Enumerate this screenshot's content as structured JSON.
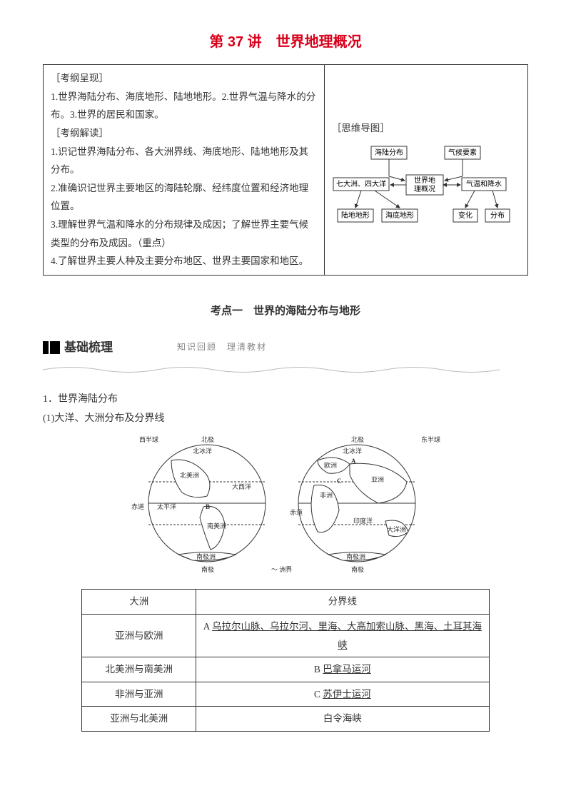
{
  "title": "第 37 讲　世界地理概况",
  "outline": {
    "left": {
      "h1": "［考纲呈现］",
      "p1": "1.世界海陆分布、海底地形、陆地地形。2.世界气温与降水的分布。3.世界的居民和国家。",
      "h2": "［考纲解读］",
      "p2": "1.识记世界海陆分布、各大洲界线、海底地形、陆地地形及其分布。",
      "p3": "2.准确识记世界主要地区的海陆轮廓、经纬度位置和经济地理位置。",
      "p4": "3.理解世界气温和降水的分布规律及成因；了解世界主要气候类型的分布及成因。（重点）",
      "p5": "4.了解世界主要人种及主要分布地区、世界主要国家和地区。"
    },
    "right": {
      "label": "［思维导图］",
      "mindmap": {
        "nodes": {
          "center": "世界地理概况",
          "tl": "海陆分布",
          "tr": "气候要素",
          "ml": "七大洲、四大洋",
          "mr": "气温和降水",
          "bl1": "陆地地形",
          "bl2": "海底地形",
          "br1": "变化",
          "br2": "分布"
        },
        "box_fill": "#ffffff",
        "box_stroke": "#333333",
        "arrow_stroke": "#333333",
        "fontsize": 10
      }
    }
  },
  "kaodian": "考点一　世界的海陆分布与地形",
  "section": {
    "label": "基础梳理",
    "sub": "知识回顾　理清教材"
  },
  "body": {
    "h1": "1．世界海陆分布",
    "h1a": "(1)大洋、大洲分布及分界线"
  },
  "globes": {
    "left_labels": {
      "top": "北极",
      "bottom": "南极",
      "outer": "西半球",
      "arctic": "北冰洋",
      "na": "北美洲",
      "atl": "大西洋",
      "pac": "太平洋",
      "sa": "南美洲",
      "ant": "南极洲",
      "eq": "赤道",
      "b": "B"
    },
    "right_labels": {
      "top": "北极",
      "bottom": "南极",
      "outer": "东半球",
      "arctic": "北冰洋",
      "eu": "欧洲",
      "as": "亚洲",
      "af": "非洲",
      "ind": "印度洋",
      "oc": "大洋洲",
      "ant": "南极洲",
      "eq": "赤道",
      "a": "A",
      "c": "C"
    },
    "legend": "～ 洲界",
    "stroke": "#333333",
    "fill": "#ffffff",
    "fontsize": 9
  },
  "boundary_table": {
    "headers": [
      "大洲",
      "分界线"
    ],
    "rows": [
      {
        "c1": "亚洲与欧洲",
        "c2_prefix": "A ",
        "c2_u": "乌拉尔山脉、乌拉尔河、里海、大高加索山脉、黑海、土耳其海峡",
        "align": "left"
      },
      {
        "c1": "北美洲与南美洲",
        "c2_prefix": "B ",
        "c2_u": "巴拿马运河",
        "align": "center"
      },
      {
        "c1": "非洲与亚洲",
        "c2_prefix": "C ",
        "c2_u": "苏伊士运河",
        "align": "center"
      },
      {
        "c1": "亚洲与北美洲",
        "c2_prefix": "",
        "c2_u": "",
        "c2_plain": "白令海峡",
        "align": "center"
      }
    ]
  }
}
